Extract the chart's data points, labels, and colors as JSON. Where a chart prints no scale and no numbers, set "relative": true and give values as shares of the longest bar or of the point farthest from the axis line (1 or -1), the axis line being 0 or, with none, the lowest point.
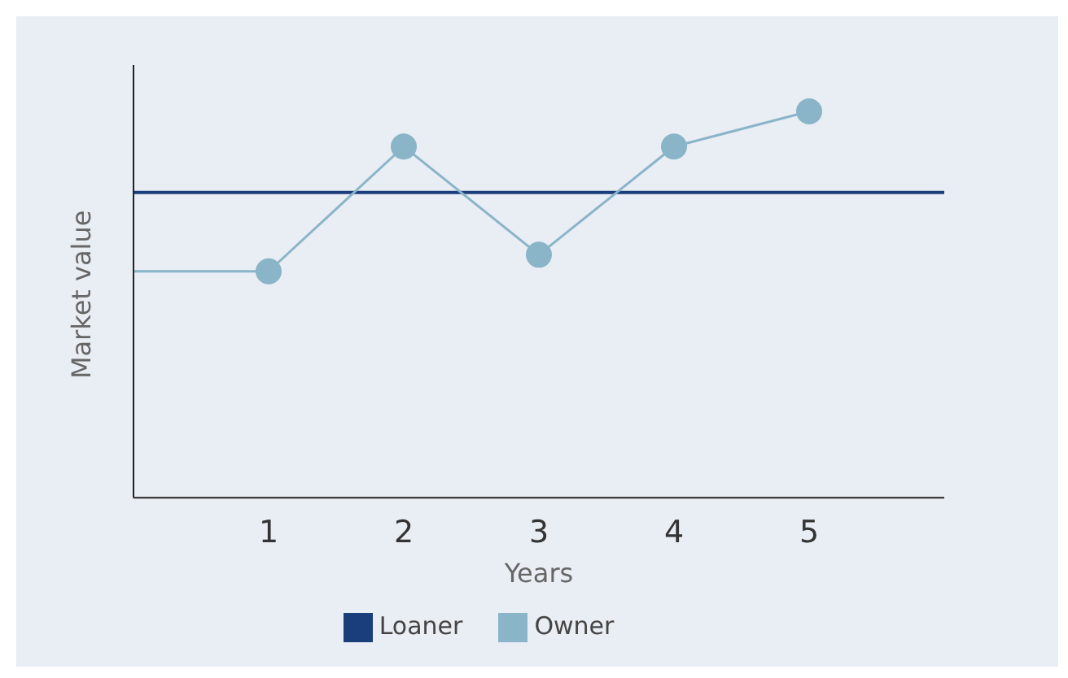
{
  "chart_data": {
    "type": "line",
    "relative": true,
    "xlabel": "Years",
    "ylabel": "Market value",
    "xlim": [
      0,
      6
    ],
    "xticks": [
      1,
      2,
      3,
      4,
      5
    ],
    "legend": "bottom",
    "grid": false,
    "series": [
      {
        "name": "Loaner",
        "color": "#1a3d7c",
        "x": [
          0,
          6
        ],
        "values": [
          0.79,
          0.79
        ],
        "marker": "none"
      },
      {
        "name": "Owner",
        "color": "#8ab4c8",
        "x": [
          0,
          1,
          2,
          3,
          4,
          5
        ],
        "values": [
          0.586,
          0.586,
          0.909,
          0.629,
          0.909,
          1
        ],
        "marker": "circle"
      }
    ]
  }
}
